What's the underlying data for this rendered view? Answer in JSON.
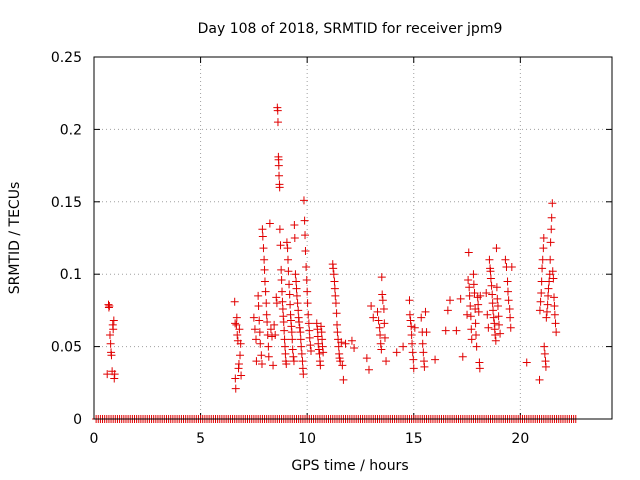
{
  "chart_data": {
    "type": "scatter",
    "title": "Day 108 of 2018, SRMTID for receiver jpm9",
    "xlabel": "GPS time / hours",
    "ylabel": "SRMTID / TECUs",
    "xlim": [
      0,
      24.3
    ],
    "ylim": [
      0,
      0.25
    ],
    "xticks": [
      0,
      5,
      10,
      15,
      20
    ],
    "xtick_labels": [
      "0",
      "5",
      "10",
      "15",
      "20"
    ],
    "yticks": [
      0,
      0.05,
      0.1,
      0.15,
      0.2,
      0.25
    ],
    "ytick_labels": [
      "0",
      "0.05",
      "0.1",
      "0.15",
      "0.2",
      "0.25"
    ],
    "grid": true,
    "marker": "+",
    "color": "#e00000",
    "zero_baseline": {
      "x_start": 0.1,
      "x_end": 22.6,
      "step": 0.1,
      "y": 0
    },
    "series": [
      {
        "name": "SRMTID",
        "points": [
          [
            0.62,
            0.031
          ],
          [
            0.68,
            0.079
          ],
          [
            0.7,
            0.077
          ],
          [
            0.72,
            0.078
          ],
          [
            0.75,
            0.058
          ],
          [
            0.78,
            0.052
          ],
          [
            0.8,
            0.046
          ],
          [
            0.82,
            0.044
          ],
          [
            0.85,
            0.033
          ],
          [
            0.88,
            0.065
          ],
          [
            0.9,
            0.062
          ],
          [
            0.93,
            0.068
          ],
          [
            0.95,
            0.028
          ],
          [
            0.97,
            0.031
          ],
          [
            6.6,
            0.081
          ],
          [
            6.62,
            0.066
          ],
          [
            6.63,
            0.028
          ],
          [
            6.65,
            0.021
          ],
          [
            6.68,
            0.065
          ],
          [
            6.7,
            0.07
          ],
          [
            6.72,
            0.058
          ],
          [
            6.75,
            0.054
          ],
          [
            6.78,
            0.035
          ],
          [
            6.8,
            0.038
          ],
          [
            6.82,
            0.062
          ],
          [
            6.85,
            0.044
          ],
          [
            6.88,
            0.052
          ],
          [
            6.9,
            0.03
          ],
          [
            7.5,
            0.07
          ],
          [
            7.55,
            0.062
          ],
          [
            7.6,
            0.055
          ],
          [
            7.62,
            0.04
          ],
          [
            7.7,
            0.085
          ],
          [
            7.72,
            0.078
          ],
          [
            7.75,
            0.068
          ],
          [
            7.78,
            0.06
          ],
          [
            7.8,
            0.052
          ],
          [
            7.85,
            0.044
          ],
          [
            7.88,
            0.038
          ],
          [
            7.9,
            0.131
          ],
          [
            7.92,
            0.126
          ],
          [
            7.95,
            0.118
          ],
          [
            7.98,
            0.11
          ],
          [
            8.0,
            0.103
          ],
          [
            8.02,
            0.095
          ],
          [
            8.05,
            0.088
          ],
          [
            8.08,
            0.08
          ],
          [
            8.1,
            0.072
          ],
          [
            8.12,
            0.067
          ],
          [
            8.15,
            0.058
          ],
          [
            8.18,
            0.05
          ],
          [
            8.2,
            0.043
          ],
          [
            8.25,
            0.135
          ],
          [
            8.3,
            0.062
          ],
          [
            8.35,
            0.057
          ],
          [
            8.4,
            0.037
          ],
          [
            8.45,
            0.065
          ],
          [
            8.5,
            0.058
          ],
          [
            8.55,
            0.084
          ],
          [
            8.58,
            0.08
          ],
          [
            8.6,
            0.215
          ],
          [
            8.62,
            0.213
          ],
          [
            8.63,
            0.205
          ],
          [
            8.65,
            0.181
          ],
          [
            8.66,
            0.179
          ],
          [
            8.67,
            0.175
          ],
          [
            8.68,
            0.168
          ],
          [
            8.7,
            0.162
          ],
          [
            8.71,
            0.16
          ],
          [
            8.72,
            0.131
          ],
          [
            8.75,
            0.12
          ],
          [
            8.78,
            0.103
          ],
          [
            8.8,
            0.096
          ],
          [
            8.82,
            0.088
          ],
          [
            8.84,
            0.081
          ],
          [
            8.86,
            0.076
          ],
          [
            8.88,
            0.071
          ],
          [
            8.9,
            0.067
          ],
          [
            8.92,
            0.061
          ],
          [
            8.94,
            0.055
          ],
          [
            8.96,
            0.05
          ],
          [
            8.98,
            0.045
          ],
          [
            9.0,
            0.04
          ],
          [
            9.02,
            0.038
          ],
          [
            9.05,
            0.122
          ],
          [
            9.08,
            0.118
          ],
          [
            9.1,
            0.11
          ],
          [
            9.12,
            0.102
          ],
          [
            9.15,
            0.093
          ],
          [
            9.18,
            0.086
          ],
          [
            9.2,
            0.079
          ],
          [
            9.22,
            0.072
          ],
          [
            9.24,
            0.068
          ],
          [
            9.26,
            0.064
          ],
          [
            9.28,
            0.06
          ],
          [
            9.3,
            0.055
          ],
          [
            9.32,
            0.048
          ],
          [
            9.35,
            0.043
          ],
          [
            9.38,
            0.04
          ],
          [
            9.4,
            0.134
          ],
          [
            9.42,
            0.125
          ],
          [
            9.45,
            0.1
          ],
          [
            9.48,
            0.095
          ],
          [
            9.5,
            0.09
          ],
          [
            9.52,
            0.085
          ],
          [
            9.55,
            0.08
          ],
          [
            9.58,
            0.075
          ],
          [
            9.6,
            0.07
          ],
          [
            9.62,
            0.067
          ],
          [
            9.65,
            0.063
          ],
          [
            9.68,
            0.06
          ],
          [
            9.7,
            0.055
          ],
          [
            9.72,
            0.05
          ],
          [
            9.75,
            0.045
          ],
          [
            9.78,
            0.04
          ],
          [
            9.8,
            0.035
          ],
          [
            9.82,
            0.031
          ],
          [
            9.85,
            0.151
          ],
          [
            9.88,
            0.137
          ],
          [
            9.9,
            0.127
          ],
          [
            9.92,
            0.116
          ],
          [
            9.95,
            0.105
          ],
          [
            9.98,
            0.096
          ],
          [
            10.0,
            0.088
          ],
          [
            10.02,
            0.08
          ],
          [
            10.05,
            0.072
          ],
          [
            10.08,
            0.066
          ],
          [
            10.1,
            0.061
          ],
          [
            10.12,
            0.056
          ],
          [
            10.15,
            0.051
          ],
          [
            10.18,
            0.047
          ],
          [
            10.45,
            0.066
          ],
          [
            10.48,
            0.062
          ],
          [
            10.5,
            0.057
          ],
          [
            10.52,
            0.052
          ],
          [
            10.55,
            0.048
          ],
          [
            10.58,
            0.045
          ],
          [
            10.6,
            0.04
          ],
          [
            10.62,
            0.037
          ],
          [
            10.65,
            0.064
          ],
          [
            10.68,
            0.06
          ],
          [
            10.7,
            0.055
          ],
          [
            10.72,
            0.05
          ],
          [
            10.75,
            0.046
          ],
          [
            11.2,
            0.107
          ],
          [
            11.22,
            0.104
          ],
          [
            11.25,
            0.1
          ],
          [
            11.28,
            0.095
          ],
          [
            11.3,
            0.09
          ],
          [
            11.32,
            0.085
          ],
          [
            11.35,
            0.08
          ],
          [
            11.38,
            0.073
          ],
          [
            11.4,
            0.065
          ],
          [
            11.42,
            0.06
          ],
          [
            11.45,
            0.055
          ],
          [
            11.48,
            0.05
          ],
          [
            11.5,
            0.045
          ],
          [
            11.52,
            0.042
          ],
          [
            11.55,
            0.04
          ],
          [
            11.6,
            0.053
          ],
          [
            11.65,
            0.037
          ],
          [
            11.7,
            0.027
          ],
          [
            11.8,
            0.052
          ],
          [
            12.1,
            0.054
          ],
          [
            12.2,
            0.049
          ],
          [
            12.8,
            0.042
          ],
          [
            12.9,
            0.034
          ],
          [
            13.0,
            0.078
          ],
          [
            13.1,
            0.07
          ],
          [
            13.3,
            0.074
          ],
          [
            13.35,
            0.068
          ],
          [
            13.4,
            0.063
          ],
          [
            13.42,
            0.058
          ],
          [
            13.45,
            0.052
          ],
          [
            13.48,
            0.048
          ],
          [
            13.5,
            0.098
          ],
          [
            13.52,
            0.086
          ],
          [
            13.55,
            0.082
          ],
          [
            13.6,
            0.076
          ],
          [
            13.62,
            0.066
          ],
          [
            13.65,
            0.056
          ],
          [
            13.7,
            0.04
          ],
          [
            14.2,
            0.046
          ],
          [
            14.5,
            0.05
          ],
          [
            14.8,
            0.082
          ],
          [
            14.82,
            0.072
          ],
          [
            14.85,
            0.068
          ],
          [
            14.88,
            0.064
          ],
          [
            14.9,
            0.058
          ],
          [
            14.92,
            0.052
          ],
          [
            14.95,
            0.046
          ],
          [
            14.98,
            0.041
          ],
          [
            15.0,
            0.035
          ],
          [
            15.05,
            0.063
          ],
          [
            15.35,
            0.07
          ],
          [
            15.4,
            0.06
          ],
          [
            15.42,
            0.052
          ],
          [
            15.45,
            0.046
          ],
          [
            15.48,
            0.04
          ],
          [
            15.5,
            0.036
          ],
          [
            15.55,
            0.074
          ],
          [
            15.6,
            0.06
          ],
          [
            16.0,
            0.041
          ],
          [
            16.5,
            0.061
          ],
          [
            16.6,
            0.075
          ],
          [
            16.7,
            0.082
          ],
          [
            17.0,
            0.061
          ],
          [
            17.2,
            0.083
          ],
          [
            17.3,
            0.043
          ],
          [
            17.5,
            0.072
          ],
          [
            17.55,
            0.096
          ],
          [
            17.58,
            0.115
          ],
          [
            17.6,
            0.091
          ],
          [
            17.62,
            0.085
          ],
          [
            17.65,
            0.078
          ],
          [
            17.68,
            0.071
          ],
          [
            17.7,
            0.062
          ],
          [
            17.72,
            0.055
          ],
          [
            17.8,
            0.1
          ],
          [
            17.82,
            0.093
          ],
          [
            17.85,
            0.087
          ],
          [
            17.88,
            0.076
          ],
          [
            17.9,
            0.066
          ],
          [
            17.92,
            0.058
          ],
          [
            17.95,
            0.05
          ],
          [
            18.0,
            0.084
          ],
          [
            18.02,
            0.079
          ],
          [
            18.05,
            0.074
          ],
          [
            18.08,
            0.039
          ],
          [
            18.1,
            0.035
          ],
          [
            18.12,
            0.085
          ],
          [
            18.4,
            0.087
          ],
          [
            18.45,
            0.072
          ],
          [
            18.5,
            0.063
          ],
          [
            18.55,
            0.11
          ],
          [
            18.58,
            0.104
          ],
          [
            18.6,
            0.102
          ],
          [
            18.62,
            0.097
          ],
          [
            18.65,
            0.092
          ],
          [
            18.68,
            0.086
          ],
          [
            18.7,
            0.08
          ],
          [
            18.72,
            0.075
          ],
          [
            18.75,
            0.07
          ],
          [
            18.78,
            0.066
          ],
          [
            18.8,
            0.062
          ],
          [
            18.82,
            0.058
          ],
          [
            18.85,
            0.054
          ],
          [
            18.88,
            0.118
          ],
          [
            18.9,
            0.091
          ],
          [
            18.92,
            0.083
          ],
          [
            18.95,
            0.078
          ],
          [
            18.98,
            0.071
          ],
          [
            19.0,
            0.065
          ],
          [
            19.05,
            0.059
          ],
          [
            19.3,
            0.11
          ],
          [
            19.35,
            0.105
          ],
          [
            19.4,
            0.095
          ],
          [
            19.42,
            0.088
          ],
          [
            19.45,
            0.082
          ],
          [
            19.5,
            0.076
          ],
          [
            19.52,
            0.07
          ],
          [
            19.55,
            0.063
          ],
          [
            19.6,
            0.105
          ],
          [
            20.3,
            0.039
          ],
          [
            20.9,
            0.027
          ],
          [
            20.92,
            0.075
          ],
          [
            20.95,
            0.081
          ],
          [
            20.98,
            0.087
          ],
          [
            21.0,
            0.095
          ],
          [
            21.02,
            0.104
          ],
          [
            21.05,
            0.11
          ],
          [
            21.08,
            0.118
          ],
          [
            21.1,
            0.125
          ],
          [
            21.12,
            0.05
          ],
          [
            21.15,
            0.045
          ],
          [
            21.18,
            0.04
          ],
          [
            21.2,
            0.036
          ],
          [
            21.22,
            0.07
          ],
          [
            21.25,
            0.074
          ],
          [
            21.28,
            0.079
          ],
          [
            21.3,
            0.085
          ],
          [
            21.32,
            0.09
          ],
          [
            21.35,
            0.095
          ],
          [
            21.38,
            0.1
          ],
          [
            21.4,
            0.11
          ],
          [
            21.42,
            0.122
          ],
          [
            21.45,
            0.131
          ],
          [
            21.47,
            0.139
          ],
          [
            21.5,
            0.149
          ],
          [
            21.52,
            0.102
          ],
          [
            21.55,
            0.097
          ],
          [
            21.58,
            0.084
          ],
          [
            21.6,
            0.078
          ],
          [
            21.62,
            0.072
          ],
          [
            21.65,
            0.066
          ],
          [
            21.68,
            0.06
          ]
        ]
      }
    ]
  }
}
